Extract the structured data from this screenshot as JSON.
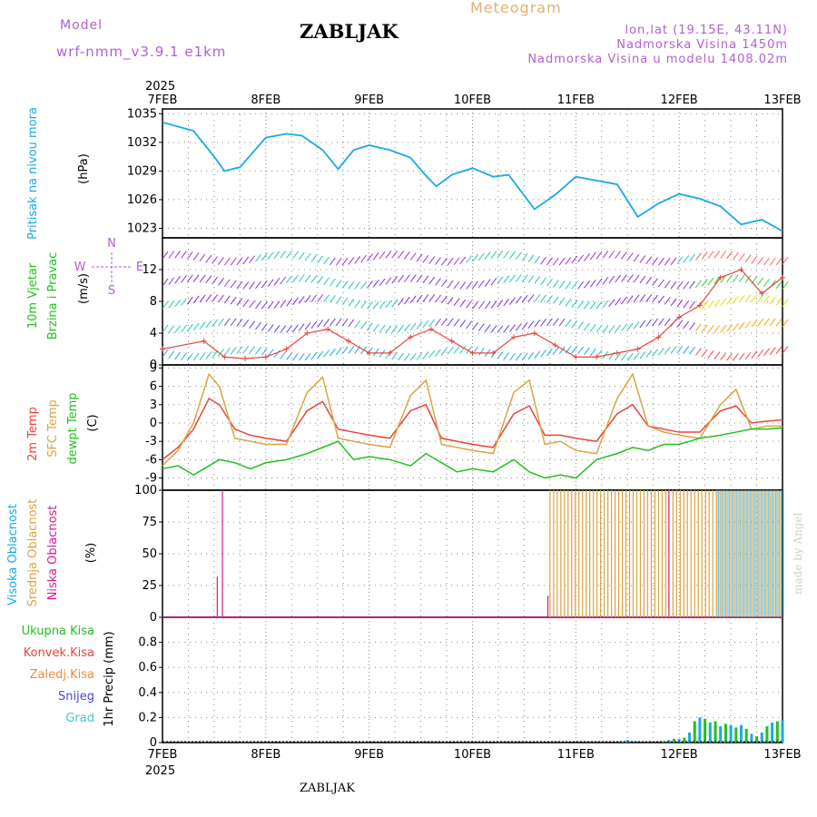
{
  "header": {
    "model_label": "Model",
    "model_value": "wrf-nmm_v3.9.1  e1km",
    "title": "ZABLJAK",
    "meteogram": "Meteogram",
    "lonlat": "lon,lat (19.15E, 43.11N)",
    "alt1": "Nadmorska Visina 1450m",
    "alt2": "Nadmorska Visina u modelu 1408.02m"
  },
  "footer": {
    "station": "ZABLJAK",
    "watermark": "made by Angel"
  },
  "colors": {
    "pressure": "#1ba9e6",
    "temp2m": "#e8453c",
    "sfctemp": "#d9a441",
    "dewpt": "#22c11c",
    "low_cloud": "#d61b8f",
    "mid_cloud": "#d9a441",
    "high_cloud": "#1ba9e6",
    "grid": "#888888",
    "wind_label": "#22c11c",
    "purple": "#b15fd3"
  },
  "chart_data": [
    {
      "type": "line",
      "id": "pressure",
      "ylabel_left": "Pritisak na nivou mora",
      "ylabel_unit": "(hPa)",
      "ylim": [
        1022,
        1035.5
      ],
      "yticks": [
        1023,
        1026,
        1029,
        1032,
        1035
      ],
      "x_days": [
        0,
        0.3,
        0.5,
        0.6,
        0.75,
        1.0,
        1.2,
        1.35,
        1.55,
        1.7,
        1.85,
        2.0,
        2.2,
        2.4,
        2.55,
        2.65,
        2.8,
        3.0,
        3.2,
        3.35,
        3.6,
        3.8,
        4.0,
        4.2,
        4.4,
        4.6,
        4.8,
        5.0,
        5.2,
        5.4,
        5.6,
        5.8,
        6.0
      ],
      "series": [
        {
          "values": [
            1034.1,
            1033.2,
            1030.5,
            1029.0,
            1029.4,
            1032.5,
            1032.9,
            1032.7,
            1031.2,
            1029.2,
            1031.2,
            1031.7,
            1031.2,
            1030.4,
            1028.5,
            1027.4,
            1028.6,
            1029.3,
            1028.4,
            1028.6,
            1025.0,
            1026.5,
            1028.4,
            1028.0,
            1027.6,
            1024.2,
            1025.6,
            1026.6,
            1026.1,
            1025.3,
            1023.4,
            1023.9,
            1022.7
          ]
        }
      ]
    },
    {
      "type": "line",
      "id": "wind",
      "ylabel_left": [
        "10m Vjetar",
        "Brzina i Pravac"
      ],
      "ylabel_unit": "(m/s)",
      "compass": {
        "n": "N",
        "s": "S",
        "e": "E",
        "w": "W"
      },
      "ylim": [
        0,
        16
      ],
      "yticks": [
        0,
        4,
        8,
        12
      ],
      "x_days": [
        0,
        0.4,
        0.6,
        0.8,
        1.0,
        1.2,
        1.4,
        1.6,
        1.8,
        2.0,
        2.2,
        2.4,
        2.6,
        2.8,
        3.0,
        3.2,
        3.4,
        3.6,
        3.8,
        4.0,
        4.2,
        4.4,
        4.6,
        4.8,
        5.0,
        5.2,
        5.4,
        5.6,
        5.8,
        6.0
      ],
      "series": [
        {
          "values": [
            2.0,
            3.0,
            1.0,
            0.8,
            1.0,
            2.0,
            4.0,
            4.5,
            3.0,
            1.5,
            1.5,
            3.5,
            4.5,
            3.0,
            1.5,
            1.5,
            3.5,
            4.0,
            2.5,
            1.0,
            1.0,
            1.5,
            2.0,
            3.5,
            6.0,
            7.5,
            11.0,
            12.0,
            9.0,
            11.0
          ]
        }
      ]
    },
    {
      "type": "line",
      "id": "temperature",
      "ylabel_left": [
        "2m Temp",
        "SFC Temp",
        "dewpt Temp"
      ],
      "ylabel_unit": "(C)",
      "ylim": [
        -11,
        9.5
      ],
      "yticks": [
        -9,
        -6,
        -3,
        0,
        3,
        6,
        9
      ],
      "x_days": [
        0,
        0.15,
        0.3,
        0.45,
        0.55,
        0.7,
        0.85,
        1.0,
        1.2,
        1.4,
        1.55,
        1.7,
        1.85,
        2.0,
        2.2,
        2.4,
        2.55,
        2.7,
        2.85,
        3.0,
        3.2,
        3.4,
        3.55,
        3.7,
        3.85,
        4.0,
        4.2,
        4.4,
        4.55,
        4.7,
        4.85,
        5.0,
        5.2,
        5.4,
        5.55,
        5.7,
        5.85,
        6.0
      ],
      "series": [
        {
          "name": "2m Temp",
          "values": [
            -6.0,
            -4.0,
            -1.0,
            4.0,
            3.0,
            -1.0,
            -2.0,
            -2.5,
            -3.0,
            2.0,
            3.5,
            -1.0,
            -1.5,
            -2.0,
            -2.5,
            2.0,
            3.0,
            -2.5,
            -3.0,
            -3.5,
            -4.0,
            1.5,
            2.8,
            -2.0,
            -2.0,
            -2.5,
            -3.0,
            1.5,
            3.0,
            -0.5,
            -1.0,
            -1.5,
            -1.5,
            2.0,
            2.8,
            0.0,
            0.3,
            0.5
          ]
        },
        {
          "name": "SFC Temp",
          "values": [
            -7.0,
            -4.5,
            0.0,
            8.0,
            6.0,
            -2.5,
            -3.0,
            -3.5,
            -3.5,
            5.0,
            7.5,
            -2.5,
            -3.0,
            -3.5,
            -4.0,
            4.5,
            7.0,
            -3.5,
            -4.0,
            -4.5,
            -5.0,
            5.0,
            7.0,
            -3.5,
            -3.0,
            -4.5,
            -5.0,
            4.0,
            8.0,
            -0.5,
            -1.5,
            -2.0,
            -2.5,
            3.0,
            5.5,
            -1.0,
            -0.5,
            -0.5
          ]
        },
        {
          "name": "dewpt Temp",
          "values": [
            -7.5,
            -7.0,
            -8.5,
            -7.0,
            -6.0,
            -6.5,
            -7.5,
            -6.5,
            -6.0,
            -5.0,
            -4.0,
            -3.0,
            -6.0,
            -5.5,
            -6.0,
            -7.0,
            -5.0,
            -6.5,
            -8.0,
            -7.5,
            -8.0,
            -6.0,
            -8.0,
            -9.0,
            -8.5,
            -9.0,
            -6.0,
            -5.0,
            -4.0,
            -4.5,
            -3.5,
            -3.5,
            -2.5,
            -2.0,
            -1.5,
            -1.0,
            -1.0,
            -0.8
          ]
        }
      ]
    },
    {
      "type": "bar",
      "id": "cloud",
      "ylabel_left": [
        "Visoka Oblacnost",
        "Srednja Oblacnost",
        "Niska Oblacnost"
      ],
      "ylabel_unit": "(%)",
      "ylim": [
        0,
        100
      ],
      "yticks": [
        0,
        25,
        50,
        75,
        100
      ],
      "low_spikes": [
        [
          0.53,
          32
        ],
        [
          0.58,
          100
        ],
        [
          3.73,
          17
        ],
        [
          4.45,
          12
        ],
        [
          4.9,
          100
        ]
      ],
      "dense_from": 3.75,
      "dense_until": 6.0
    },
    {
      "type": "bar",
      "id": "precip",
      "legend": [
        "Ukupna Kisa",
        "Konvek.Kisa",
        "Zaledj.Kisa",
        "Snijeg",
        "Grad"
      ],
      "legend_colors": [
        "#22c11c",
        "#e8453c",
        "#f08a3c",
        "#4a44d6",
        "#3ec9c9"
      ],
      "ylabel_unit": "1hr Precip (mm)",
      "ylim": [
        0,
        1
      ],
      "yticks": [
        0,
        0.2,
        0.4,
        0.6,
        0.8
      ],
      "x_days": [
        4.45,
        4.5,
        4.85,
        4.9,
        4.95,
        5.0,
        5.05,
        5.1,
        5.15,
        5.2,
        5.25,
        5.3,
        5.35,
        5.4,
        5.45,
        5.5,
        5.55,
        5.6,
        5.65,
        5.7,
        5.75,
        5.8,
        5.85,
        5.9,
        5.95,
        6.0
      ],
      "series": [
        {
          "name": "Ukupna Kisa",
          "values": [
            0.01,
            0.02,
            0.01,
            0.02,
            0.03,
            0.03,
            0.04,
            0.08,
            0.17,
            0.2,
            0.19,
            0.16,
            0.17,
            0.13,
            0.15,
            0.14,
            0.12,
            0.14,
            0.11,
            0.07,
            0.05,
            0.08,
            0.13,
            0.16,
            0.17,
            0.18
          ]
        }
      ]
    }
  ],
  "x_axis": {
    "year": "2025",
    "labels": [
      "7FEB",
      "8FEB",
      "9FEB",
      "10FEB",
      "11FEB",
      "12FEB",
      "13FEB"
    ]
  }
}
